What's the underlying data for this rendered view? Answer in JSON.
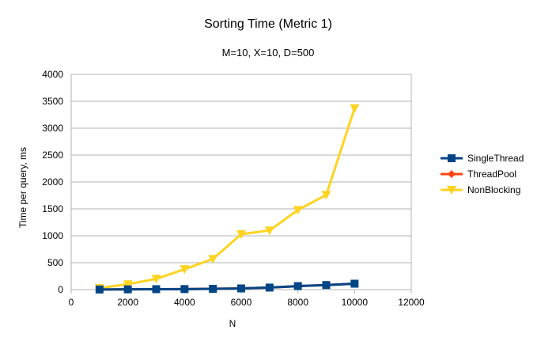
{
  "chart_data": {
    "type": "line",
    "title": "Sorting Time (Metric 1)",
    "subtitle": "M=10, X=10, D=500",
    "xlabel": "N",
    "ylabel": "Time per query, ms",
    "xlim": [
      0,
      12000
    ],
    "ylim": [
      0,
      4000
    ],
    "xticks": [
      0,
      2000,
      4000,
      6000,
      8000,
      10000,
      12000
    ],
    "yticks": [
      0,
      500,
      1000,
      1500,
      2000,
      2500,
      3000,
      3500,
      4000
    ],
    "grid": "horizontal",
    "legend_position": "right",
    "x": [
      1000,
      2000,
      3000,
      4000,
      5000,
      6000,
      7000,
      8000,
      9000,
      10000
    ],
    "series": [
      {
        "name": "SingleThread",
        "color": "#004586",
        "marker": "square",
        "values": [
          2,
          5,
          8,
          10,
          15,
          22,
          38,
          65,
          85,
          110
        ]
      },
      {
        "name": "ThreadPool",
        "color": "#ff420e",
        "marker": "diamond",
        "values": [
          2,
          5,
          8,
          10,
          15,
          22,
          38,
          65,
          85,
          110
        ]
      },
      {
        "name": "NonBlocking",
        "color": "#ffd320",
        "marker": "triangle-down",
        "values": [
          30,
          100,
          200,
          380,
          570,
          1030,
          1100,
          1480,
          1760,
          3370
        ]
      }
    ]
  }
}
